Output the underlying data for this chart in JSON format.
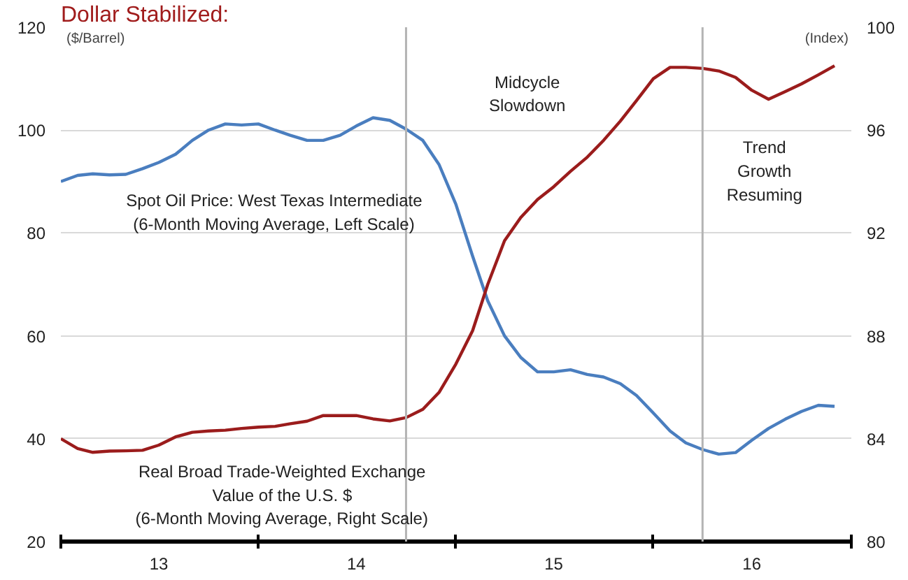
{
  "chart_data": {
    "type": "line",
    "title": "Dollar Stabilized:",
    "ylabel": "($/Barrel)",
    "y2label": "(Index)",
    "x": [
      "2013-01",
      "2013-02",
      "2013-03",
      "2013-04",
      "2013-05",
      "2013-06",
      "2013-07",
      "2013-08",
      "2013-09",
      "2013-10",
      "2013-11",
      "2013-12",
      "2014-01",
      "2014-02",
      "2014-03",
      "2014-04",
      "2014-05",
      "2014-06",
      "2014-07",
      "2014-08",
      "2014-09",
      "2014-10",
      "2014-11",
      "2014-12",
      "2015-01",
      "2015-02",
      "2015-03",
      "2015-04",
      "2015-05",
      "2015-06",
      "2015-07",
      "2015-08",
      "2015-09",
      "2015-10",
      "2015-11",
      "2015-12",
      "2016-01",
      "2016-02",
      "2016-03",
      "2016-04",
      "2016-05",
      "2016-06",
      "2016-07",
      "2016-08",
      "2016-09",
      "2016-10",
      "2016-11",
      "2016-12"
    ],
    "xlim": [
      "2013-01",
      "2017-01"
    ],
    "xticks": [
      {
        "value": "2013-01",
        "label": null
      },
      {
        "value": "2013-07",
        "label": "13"
      },
      {
        "value": "2014-01",
        "label": null
      },
      {
        "value": "2014-07",
        "label": "14"
      },
      {
        "value": "2015-01",
        "label": null
      },
      {
        "value": "2015-07",
        "label": "15"
      },
      {
        "value": "2016-01",
        "label": null
      },
      {
        "value": "2016-07",
        "label": "16"
      },
      {
        "value": "2017-01",
        "label": null
      }
    ],
    "ylim": [
      20,
      120
    ],
    "yticks": [
      20,
      40,
      60,
      80,
      100,
      120
    ],
    "y2lim": [
      80,
      100
    ],
    "y2ticks": [
      80,
      84,
      88,
      92,
      96,
      100
    ],
    "grid": "y",
    "series": [
      {
        "color": "#4a7ebf",
        "values": [
          90,
          91.2,
          91.5,
          91.3,
          91.4,
          92.5,
          93.7,
          95.3,
          98,
          100,
          101.2,
          101,
          101.2,
          100,
          99,
          98,
          98,
          99,
          100.8,
          102.4,
          101.9,
          100.2,
          98,
          93.3,
          85.6,
          75.5,
          66.8,
          60,
          55.8,
          53,
          53,
          53.4,
          52.5,
          52,
          50.7,
          48.4,
          45,
          41.5,
          39.2,
          37.9,
          37,
          37.3,
          39.7,
          42,
          43.8,
          45.3,
          46.5,
          46.3
        ]
      },
      {
        "color": "#9b1c1c",
        "axis": "y2",
        "values": [
          84.0,
          83.62,
          83.47,
          83.52,
          83.53,
          83.55,
          83.75,
          84.07,
          84.25,
          84.3,
          84.33,
          84.4,
          84.45,
          84.48,
          84.58,
          84.68,
          84.9,
          84.9,
          84.9,
          84.77,
          84.69,
          84.82,
          85.14,
          85.8,
          86.9,
          88.2,
          90,
          91.7,
          92.6,
          93.3,
          93.8,
          94.4,
          94.95,
          95.6,
          96.35,
          97.15,
          98.0,
          98.44,
          98.44,
          98.4,
          98.3,
          98.05,
          97.55,
          97.2,
          97.5,
          97.8,
          98.15,
          98.5
        ]
      }
    ],
    "ref_lines": [
      {
        "axis": "x",
        "value": "2014-10",
        "color": "#b4b4b4"
      },
      {
        "axis": "x",
        "value": "2016-04",
        "color": "#b4b4b4"
      }
    ],
    "annotations": [
      "Midcycle\nSlowdown",
      "Trend\nGrowth\nResuming",
      "Spot Oil Price: West Texas Intermediate\n(6-Month Moving Average, Left Scale)",
      "Real Broad Trade-Weighted Exchange\nValue of the U.S. $\n(6-Month Moving Average, Right Scale)"
    ]
  }
}
